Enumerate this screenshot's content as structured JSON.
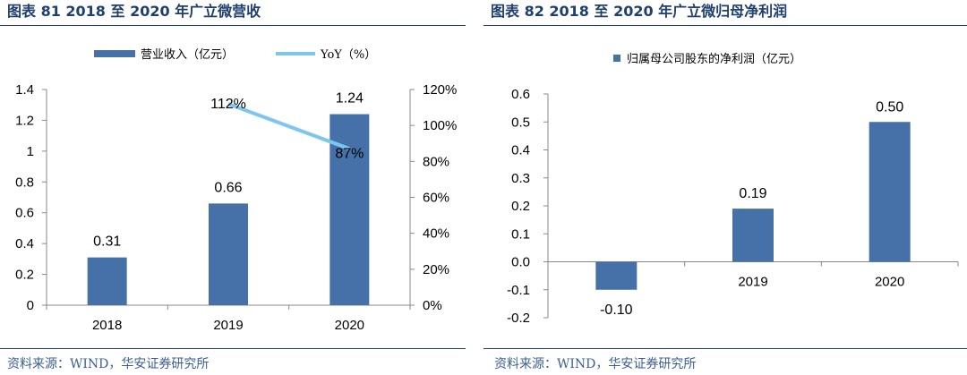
{
  "charts": [
    {
      "title": "图表 81 2018 至 2020 年广立微营收",
      "source": "资料来源：WIND，华安证券研究所"
    },
    {
      "title": "图表 82 2018 至 2020 年广立微归母净利润",
      "source": "资料来源：WIND，华安证券研究所"
    }
  ],
  "chart_data": [
    {
      "type": "bar",
      "title": "2018 至 2020 年广立微营收",
      "categories": [
        "2018",
        "2019",
        "2020"
      ],
      "series": [
        {
          "name": "营业收入（亿元）",
          "type": "bar",
          "axis": "left",
          "values": [
            0.31,
            0.66,
            1.24
          ],
          "labels": [
            "0.31",
            "0.66",
            "1.24"
          ]
        },
        {
          "name": "YoY（%）",
          "type": "line",
          "axis": "right",
          "values": [
            null,
            112,
            87
          ],
          "labels": [
            "",
            "112%",
            "87%"
          ]
        }
      ],
      "ylim": [
        0,
        1.4
      ],
      "yticks": [
        "0",
        "0.2",
        "0.4",
        "0.6",
        "0.8",
        "1",
        "1.2",
        "1.4"
      ],
      "y2lim": [
        0,
        120
      ],
      "y2ticks": [
        "0%",
        "20%",
        "40%",
        "60%",
        "80%",
        "100%",
        "120%"
      ],
      "legend_position": "top",
      "colors": {
        "bar": "#4571a8",
        "line": "#7ec6f2"
      }
    },
    {
      "type": "bar",
      "title": "2018 至 2020 年广立微归母净利润",
      "categories": [
        "2018",
        "2019",
        "2020"
      ],
      "series": [
        {
          "name": "归属母公司股东的净利润（亿元）",
          "type": "bar",
          "axis": "left",
          "values": [
            -0.1,
            0.19,
            0.5
          ],
          "labels": [
            "-0.10",
            "0.19",
            "0.50"
          ]
        }
      ],
      "ylim": [
        -0.2,
        0.6
      ],
      "yticks": [
        "-0.2",
        "-0.1",
        "0.0",
        "0.1",
        "0.2",
        "0.3",
        "0.4",
        "0.5",
        "0.6"
      ],
      "legend_position": "top",
      "colors": {
        "bar": "#4571a8"
      }
    }
  ]
}
